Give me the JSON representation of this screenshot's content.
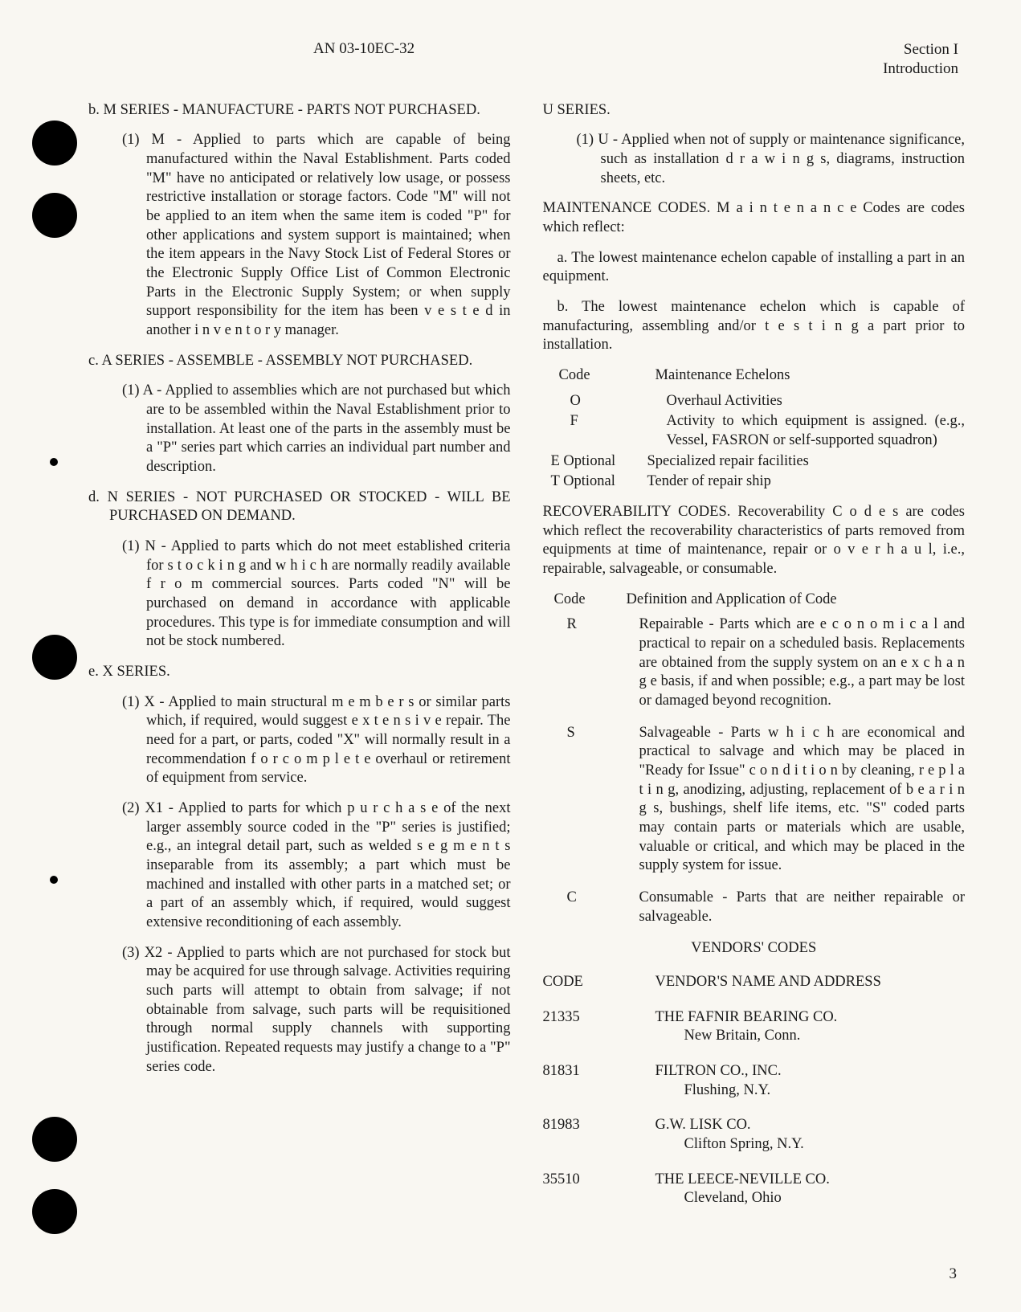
{
  "header": {
    "doc_number": "AN 03-10EC-32",
    "section": "Section I",
    "subsection": "Introduction"
  },
  "punch_holes": [
    150,
    240,
    790,
    1390,
    1480
  ],
  "small_dots": [
    570,
    1090
  ],
  "left_col": {
    "b_title": "b. M SERIES - MANUFACTURE - PARTS NOT PURCHASED.",
    "b1": "(1) M - Applied to parts which are capable of being manufactured within the Naval Establishment. Parts coded \"M\" have no anticipated or relatively low usage, or possess restrictive installation or storage factors. Code \"M\" will not be applied to an item when the same item is coded \"P\" for other applications and system support is maintained; when the item appears in the Navy Stock List of Federal Stores or the Electronic Supply Office List of Common Electronic Parts in the Electronic Supply System; or when supply support responsibility for the item has been v e s t e d in another i n v e n t o r y manager.",
    "c_title": "c. A SERIES - ASSEMBLE - ASSEMBLY NOT PURCHASED.",
    "c1": "(1) A - Applied to assemblies which are not purchased but which are to be assembled within the Naval Establishment prior to installation. At least one of the parts in the assembly must be a \"P\" series part which carries an individual part number and description.",
    "d_title": "d. N SERIES - NOT PURCHASED OR STOCKED - WILL BE PURCHASED ON DEMAND.",
    "d1": "(1) N - Applied to parts which do not meet established criteria for s t o c k i n g and w h i c h are normally readily available f r o m commercial sources. Parts coded \"N\" will be purchased on demand in accordance with applicable procedures. This type is for immediate consumption and will not be stock numbered.",
    "e_title": "e. X SERIES.",
    "e1": "(1) X - Applied to main structural m e m b e r s or similar parts which, if required, would suggest e x t e n s i v e repair. The need for a part, or parts, coded \"X\" will normally result in a recommendation f o r  c o m p l e t e overhaul or retirement of equipment from service.",
    "e2": "(2) X1 - Applied to parts for which p u r c h a s e of the next larger assembly source coded in the \"P\" series is justified; e.g., an integral detail part, such as welded s e g m e n t s inseparable from its assembly; a part which must be machined and installed with other parts in a matched set; or a part of an assembly which, if required, would suggest extensive reconditioning of each assembly.",
    "e3": "(3) X2 - Applied to parts which are not purchased for stock but may be acquired for use through salvage. Activities requiring such parts will attempt to obtain from salvage; if not obtainable from salvage, such parts will be requisitioned through normal supply channels with supporting justification. Repeated requests may justify a change to a \"P\" series code."
  },
  "right_col": {
    "u_title": "U SERIES.",
    "u1": "(1) U - Applied when not of supply or maintenance significance, such as installation d r a w i n g s, diagrams, instruction sheets, etc.",
    "maint_intro": "MAINTENANCE CODES. M a i n t e n a n c e Codes are codes which reflect:",
    "maint_a": "a. The lowest maintenance echelon capable of installing a part in an equipment.",
    "maint_b": "b. The lowest maintenance echelon which is capable of manufacturing, assembling and/or t e s t i n g a part prior to installation.",
    "maint_header_code": "Code",
    "maint_header_desc": "Maintenance Echelons",
    "maint_rows": [
      {
        "code": "O",
        "desc": "Overhaul Activities"
      },
      {
        "code": "F",
        "desc": "Activity to which equipment is assigned. (e.g., Vessel, FASRON or self-supported squadron)"
      },
      {
        "code": "E Optional",
        "desc": "Specialized repair facilities"
      },
      {
        "code": "T Optional",
        "desc": "Tender of repair ship"
      }
    ],
    "rec_intro": "RECOVERABILITY CODES. Recoverability C o d e s are codes which reflect the recoverability characteristics of parts removed from equipments at time of maintenance, repair or o v e r h a u l, i.e., repairable, salvageable, or consumable.",
    "rec_header_code": "Code",
    "rec_header_desc": "Definition and Application of Code",
    "rec_rows": [
      {
        "code": "R",
        "desc": "Repairable - Parts which are e c o n o m i c a l and practical to repair on a scheduled basis. Replacements are obtained from the supply system on an e x c h a n g e basis, if and when possible; e.g., a part may be lost or damaged beyond recognition."
      },
      {
        "code": "S",
        "desc": "Salvageable - Parts w h i c h are economical and practical to salvage and which may be placed in \"Ready for Issue\" c o n d i t i o n by cleaning, r e p l a t i n g, anodizing, adjusting, replacement of b e a r i n g s, bushings, shelf life items, etc. \"S\" coded parts may contain parts or materials which are usable, valuable or critical, and which may be placed in the supply system for issue."
      },
      {
        "code": "C",
        "desc": "Consumable - Parts that are neither repairable or salvageable."
      }
    ],
    "vendors_title": "VENDORS' CODES",
    "vendors_header_code": "CODE",
    "vendors_header_name": "VENDOR'S NAME AND ADDRESS",
    "vendors": [
      {
        "code": "21335",
        "name": "THE FAFNIR BEARING CO.",
        "addr": "New Britain, Conn."
      },
      {
        "code": "81831",
        "name": "FILTRON CO., INC.",
        "addr": "Flushing, N.Y."
      },
      {
        "code": "81983",
        "name": "G.W. LISK CO.",
        "addr": "Clifton Spring, N.Y."
      },
      {
        "code": "35510",
        "name": "THE LEECE-NEVILLE CO.",
        "addr": "Cleveland, Ohio"
      }
    ]
  },
  "page_number": "3"
}
